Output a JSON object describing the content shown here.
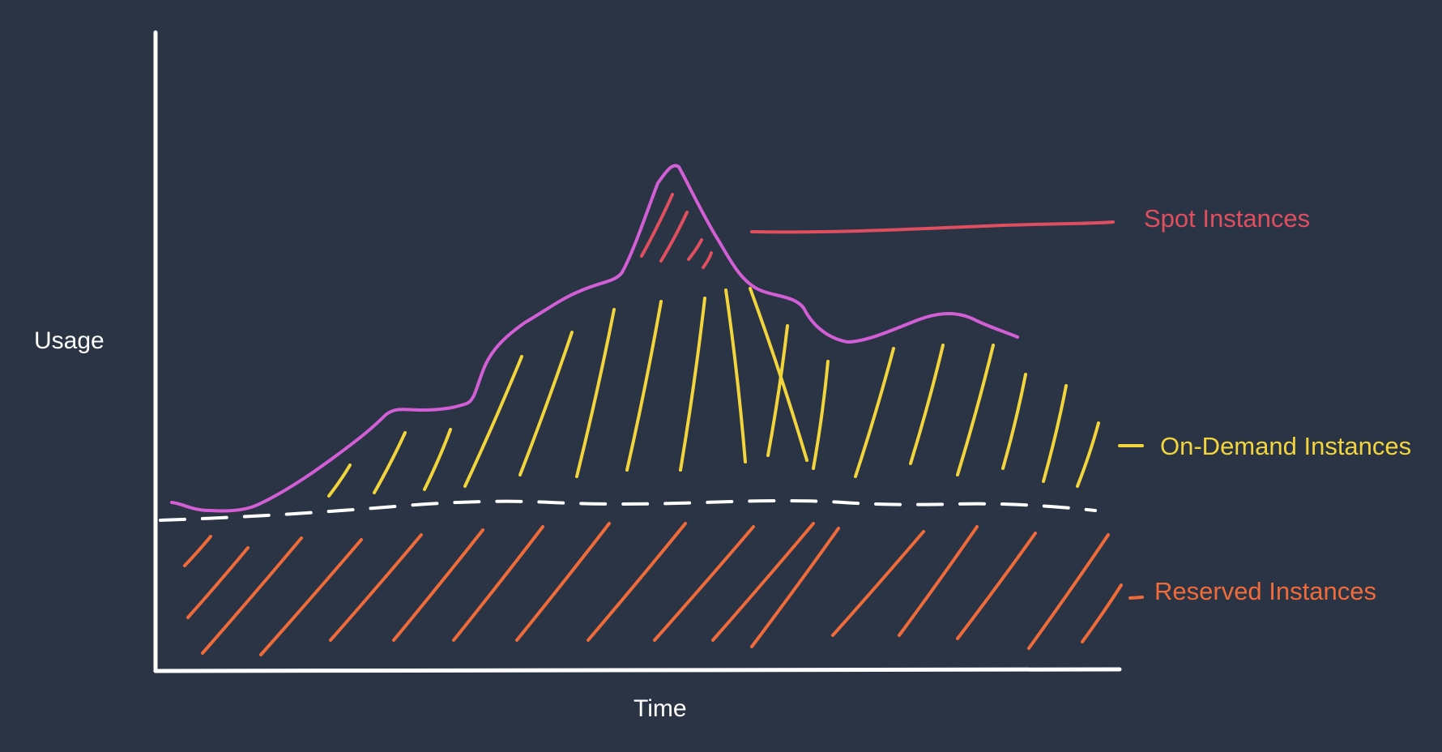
{
  "axes": {
    "x_label": "Time",
    "y_label": "Usage"
  },
  "legend": {
    "spot": "Spot Instances",
    "on_demand": "On-Demand Instances",
    "reserved": "Reserved Instances"
  },
  "colors": {
    "background": "#2b3445",
    "axis": "#ffffff",
    "usage_curve": "#d35fd6",
    "spot": "#e04f5f",
    "on_demand": "#f2d43c",
    "reserved": "#ef6b3a",
    "baseline": "#ffffff"
  }
}
